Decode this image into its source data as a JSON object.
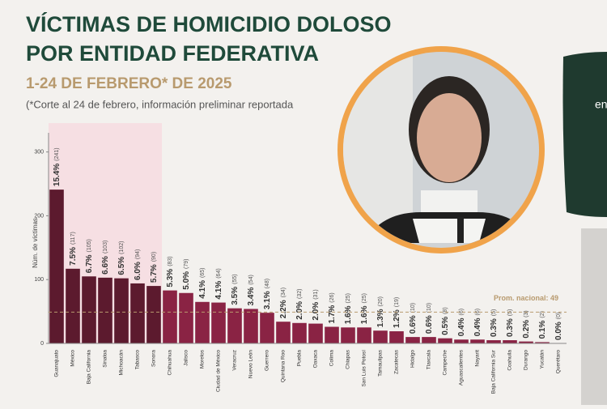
{
  "chart_data": {
    "type": "bar",
    "title_lines": [
      "VÍCTIMAS DE HOMICIDIO DOLOSO",
      "POR ENTIDAD FEDERATIVA"
    ],
    "subtitle": "1-24 DE FEBRERO* DE 2025",
    "note": "(*Corte al 24 de febrero, información preliminar reportada",
    "y_label": "Núm. de víctimas",
    "side_text": "en",
    "categories": [
      "Guanajuato",
      "México",
      "Baja California",
      "Sinaloa",
      "Michoacán",
      "Tabasco",
      "Sonora",
      "Chihuahua",
      "Jalisco",
      "Morelos",
      "Ciudad de México",
      "Veracruz",
      "Nuevo León",
      "Guerrero",
      "Quintana Roo",
      "Puebla",
      "Oaxaca",
      "Colima",
      "Chiapas",
      "San Luis Potosí",
      "Tamaulipas",
      "Zacatecas",
      "Hidalgo",
      "Tlaxcala",
      "Campeche",
      "Aguascalientes",
      "Nayarit",
      "Baja California Sur",
      "Coahuila",
      "Durango",
      "Yucatán",
      "Querétaro"
    ],
    "values": [
      241,
      117,
      105,
      103,
      102,
      94,
      90,
      83,
      79,
      65,
      64,
      55,
      54,
      48,
      34,
      32,
      31,
      26,
      25,
      25,
      20,
      19,
      10,
      10,
      8,
      6,
      6,
      5,
      5,
      3,
      2,
      0
    ],
    "value_labels": [
      "(241)",
      "(117)",
      "(105)",
      "(103)",
      "(102)",
      "(94)",
      "(90)",
      "(83)",
      "(79)",
      "(65)",
      "(64)",
      "(55)",
      "(54)",
      "(48)",
      "(34)",
      "(32)",
      "(31)",
      "(26)",
      "(25)",
      "(25)",
      "(20)",
      "(19)",
      "(10)",
      "(10)",
      "(8)",
      "(6)",
      "(6)",
      "(5)",
      "(5)",
      "(3)",
      "(2)",
      "(0)"
    ],
    "shares": [
      15.4,
      7.5,
      6.7,
      6.6,
      6.5,
      6.0,
      5.7,
      5.3,
      5.0,
      4.1,
      4.1,
      3.5,
      3.4,
      3.1,
      2.2,
      2.0,
      2.0,
      1.7,
      1.6,
      1.6,
      1.3,
      1.2,
      0.6,
      0.6,
      0.5,
      0.4,
      0.4,
      0.3,
      0.3,
      0.2,
      0.1,
      0.0
    ],
    "share_labels": [
      "15.4%",
      "7.5%",
      "6.7%",
      "6.6%",
      "6.5%",
      "6.0%",
      "5.7%",
      "5.3%",
      "5.0%",
      "4.1%",
      "4.1%",
      "3.5%",
      "3.4%",
      "3.1%",
      "2.2%",
      "2.0%",
      "2.0%",
      "1.7%",
      "1.6%",
      "1.6%",
      "1.3%",
      "1.2%",
      "0.6%",
      "0.6%",
      "0.5%",
      "0.4%",
      "0.4%",
      "0.3%",
      "0.3%",
      "0.2%",
      "0.1%",
      "0.0%"
    ],
    "bar_colors": [
      "#5c1a2e",
      "#5c1a2e",
      "#5c1a2e",
      "#5c1a2e",
      "#5c1a2e",
      "#5c1a2e",
      "#5c1a2e",
      "#8a2344",
      "#8a2344",
      "#8a2344",
      "#8a2344",
      "#8a2344",
      "#8a2344",
      "#8a2344",
      "#8a2344",
      "#8a2344",
      "#8a2344",
      "#8a2344",
      "#8a2344",
      "#8a2344",
      "#8a2344",
      "#8a2344",
      "#8a2344",
      "#8a2344",
      "#8a2344",
      "#8a2344",
      "#8a2344",
      "#8a2344",
      "#8a2344",
      "#8a2344",
      "#8a2344",
      "#8a2344"
    ],
    "highlight_color": "#f6dfe3",
    "average": {
      "value": 49,
      "label": "Prom. nacional: 49"
    },
    "ylim": [
      0,
      330
    ],
    "yticks": [
      0,
      100,
      200,
      300
    ]
  }
}
